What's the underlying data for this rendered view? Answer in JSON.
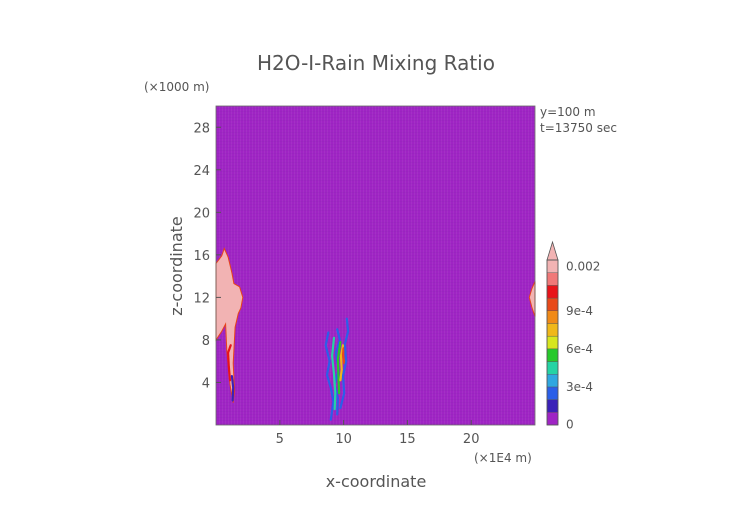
{
  "chart_data": {
    "type": "heatmap",
    "title": "H2O-I-Rain Mixing Ratio",
    "xlabel": "x-coordinate",
    "ylabel": "z-coordinate",
    "x_unit": "(×1E4 m)",
    "y_unit": "(×1000 m)",
    "xlim": [
      0,
      25
    ],
    "ylim": [
      0,
      30
    ],
    "x_ticks": [
      5,
      10,
      15,
      20
    ],
    "y_ticks": [
      4,
      8,
      12,
      16,
      20,
      24,
      28
    ],
    "annotations": [
      "y=100 m",
      "t=13750 sec"
    ],
    "background_value": 0,
    "colorbar": {
      "levels": [
        0,
        0.0001,
        0.0002,
        0.0003,
        0.0004,
        0.0005,
        0.0006,
        0.0007,
        0.0008,
        0.0009,
        0.001,
        0.0011,
        0.002
      ],
      "colors": [
        "#9f24c4",
        "#3a21b8",
        "#2b5fe8",
        "#2fa7e0",
        "#25d3a4",
        "#27c92b",
        "#d7e61f",
        "#f0b81a",
        "#f08a18",
        "#e84a1a",
        "#e8141a",
        "#f07878",
        "#f2b3b3"
      ],
      "tick_labels": [
        {
          "value": 0,
          "label": "0"
        },
        {
          "value": 0.0003,
          "label": "3e-4"
        },
        {
          "value": 0.0006,
          "label": "6e-4"
        },
        {
          "value": 0.0009,
          "label": "9e-4"
        },
        {
          "value": 0.002,
          "label": "0.002"
        }
      ]
    },
    "regions": [
      {
        "name": "left-edge-cloud",
        "value": 0.002,
        "outline": [
          [
            0,
            8
          ],
          [
            0.45,
            8.8
          ],
          [
            0.75,
            9.5
          ],
          [
            0.85,
            7
          ],
          [
            1.1,
            3.8
          ],
          [
            1.35,
            2.1
          ],
          [
            1.45,
            3.2
          ],
          [
            1.35,
            5.8
          ],
          [
            1.5,
            9.2
          ],
          [
            1.75,
            10.5
          ],
          [
            1.95,
            11
          ],
          [
            2.1,
            12
          ],
          [
            1.85,
            13
          ],
          [
            1.4,
            13.3
          ],
          [
            1.25,
            14.3
          ],
          [
            0.95,
            15.8
          ],
          [
            0.65,
            16.6
          ],
          [
            0.45,
            15.9
          ],
          [
            0,
            15.2
          ]
        ]
      },
      {
        "name": "right-edge-cloud",
        "value": 0.002,
        "outline": [
          [
            25,
            13.5
          ],
          [
            24.75,
            12.8
          ],
          [
            24.55,
            12
          ],
          [
            24.75,
            11.1
          ],
          [
            25,
            10.2
          ]
        ]
      }
    ],
    "filaments": [
      {
        "name": "left-cloud-inner-red",
        "value": 0.001,
        "points": [
          [
            1.1,
            4.2
          ],
          [
            1.0,
            5.5
          ],
          [
            0.95,
            6.8
          ],
          [
            1.15,
            7.5
          ]
        ]
      },
      {
        "name": "left-cloud-inner-blue",
        "value": 0.0001,
        "points": [
          [
            1.3,
            2.3
          ],
          [
            1.35,
            3.5
          ],
          [
            1.25,
            4.6
          ]
        ]
      },
      {
        "name": "center-blue-1",
        "value": 0.0002,
        "points": [
          [
            8.8,
            8.7
          ],
          [
            8.6,
            7.5
          ],
          [
            8.9,
            6.0
          ],
          [
            8.7,
            4.7
          ],
          [
            9.0,
            3.5
          ],
          [
            9.2,
            2.2
          ],
          [
            9.0,
            0.5
          ]
        ]
      },
      {
        "name": "center-blue-2",
        "value": 0.0002,
        "points": [
          [
            9.5,
            9.0
          ],
          [
            9.7,
            8.0
          ],
          [
            9.4,
            6.8
          ],
          [
            9.6,
            5.2
          ],
          [
            9.3,
            3.8
          ],
          [
            9.55,
            2.5
          ],
          [
            9.5,
            1.0
          ]
        ]
      },
      {
        "name": "center-cyan",
        "value": 0.0004,
        "points": [
          [
            9.25,
            8.2
          ],
          [
            9.1,
            6.5
          ],
          [
            9.25,
            4.8
          ],
          [
            9.35,
            3.0
          ],
          [
            9.3,
            1.5
          ]
        ]
      },
      {
        "name": "center-green",
        "value": 0.0005,
        "points": [
          [
            9.75,
            7.8
          ],
          [
            9.55,
            6.2
          ],
          [
            9.6,
            4.5
          ],
          [
            9.65,
            3.0
          ]
        ]
      },
      {
        "name": "center-yellow",
        "value": 0.0007,
        "points": [
          [
            9.95,
            7.5
          ],
          [
            9.8,
            6.5
          ],
          [
            9.85,
            5.2
          ],
          [
            9.75,
            4.2
          ]
        ]
      },
      {
        "name": "center-orange",
        "value": 0.0009,
        "points": [
          [
            10.0,
            7.2
          ],
          [
            9.95,
            6.6
          ],
          [
            10.05,
            5.8
          ]
        ]
      },
      {
        "name": "center-blue-3",
        "value": 0.0002,
        "points": [
          [
            10.25,
            10.0
          ],
          [
            10.35,
            8.8
          ],
          [
            10.1,
            7.6
          ],
          [
            10.2,
            6.0
          ],
          [
            9.95,
            4.6
          ],
          [
            10.05,
            3.0
          ],
          [
            9.75,
            1.6
          ]
        ]
      }
    ]
  }
}
